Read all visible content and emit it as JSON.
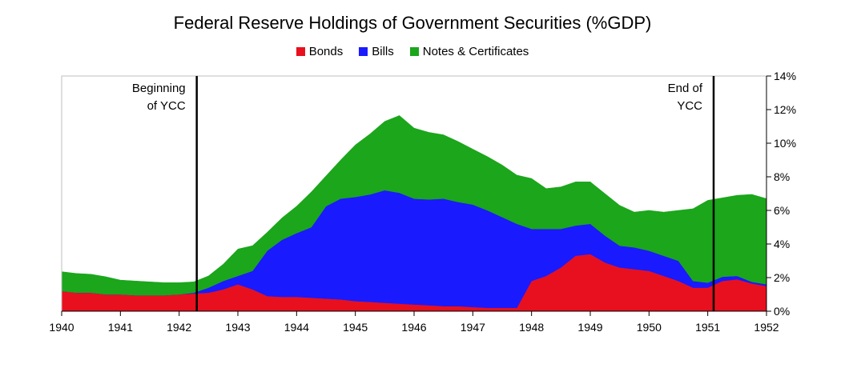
{
  "chart_data": {
    "type": "area",
    "stacked": true,
    "title": "Federal Reserve Holdings of Government Securities (%GDP)",
    "xlabel": "",
    "ylabel": "",
    "xlim": [
      1940,
      1952
    ],
    "ylim": [
      0,
      14
    ],
    "x_ticks": [
      1940,
      1941,
      1942,
      1943,
      1944,
      1945,
      1946,
      1947,
      1948,
      1949,
      1950,
      1951,
      1952
    ],
    "y_ticks": [
      0,
      2,
      4,
      6,
      8,
      10,
      12,
      14
    ],
    "y_tick_labels": [
      "0%",
      "2%",
      "4%",
      "6%",
      "8%",
      "10%",
      "12%",
      "14%"
    ],
    "y_axis_side": "right",
    "grid": false,
    "legend_position": "top-center",
    "x": [
      1940.0,
      1940.25,
      1940.5,
      1940.75,
      1941.0,
      1941.25,
      1941.5,
      1941.75,
      1942.0,
      1942.25,
      1942.5,
      1942.75,
      1943.0,
      1943.25,
      1943.5,
      1943.75,
      1944.0,
      1944.25,
      1944.5,
      1944.75,
      1945.0,
      1945.25,
      1945.5,
      1945.75,
      1946.0,
      1946.25,
      1946.5,
      1946.75,
      1947.0,
      1947.25,
      1947.5,
      1947.75,
      1948.0,
      1948.25,
      1948.5,
      1948.75,
      1949.0,
      1949.25,
      1949.5,
      1949.75,
      1950.0,
      1950.25,
      1950.5,
      1950.75,
      1951.0,
      1951.25,
      1951.5,
      1951.75,
      1952.0
    ],
    "series": [
      {
        "name": "Bonds",
        "color": "#e8101e",
        "values": [
          1.2,
          1.1,
          1.1,
          1.0,
          1.0,
          0.95,
          0.95,
          0.95,
          1.0,
          1.05,
          1.1,
          1.3,
          1.6,
          1.3,
          0.9,
          0.85,
          0.85,
          0.8,
          0.75,
          0.7,
          0.6,
          0.55,
          0.5,
          0.45,
          0.4,
          0.35,
          0.3,
          0.3,
          0.25,
          0.2,
          0.2,
          0.2,
          1.8,
          2.1,
          2.6,
          3.3,
          3.4,
          2.9,
          2.6,
          2.5,
          2.4,
          2.1,
          1.8,
          1.4,
          1.4,
          1.8,
          1.9,
          1.65,
          1.5
        ]
      },
      {
        "name": "Bills",
        "color": "#1a1aff",
        "values": [
          0.0,
          0.0,
          0.0,
          0.0,
          0.0,
          0.0,
          0.0,
          0.0,
          0.0,
          0.05,
          0.3,
          0.5,
          0.5,
          1.1,
          2.7,
          3.4,
          3.8,
          4.2,
          5.5,
          6.0,
          6.2,
          6.4,
          6.7,
          6.6,
          6.3,
          6.3,
          6.4,
          6.2,
          6.1,
          5.8,
          5.4,
          5.0,
          3.1,
          2.8,
          2.3,
          1.8,
          1.8,
          1.6,
          1.3,
          1.3,
          1.2,
          1.2,
          1.2,
          0.4,
          0.3,
          0.25,
          0.2,
          0.1,
          0.1
        ]
      },
      {
        "name": "Notes & Certificates",
        "color": "#1ba61b",
        "values": [
          1.15,
          1.15,
          1.1,
          1.05,
          0.85,
          0.85,
          0.8,
          0.75,
          0.7,
          0.65,
          0.7,
          1.0,
          1.6,
          1.5,
          1.1,
          1.3,
          1.6,
          2.1,
          1.8,
          2.3,
          3.1,
          3.6,
          4.1,
          4.6,
          4.2,
          4.0,
          3.8,
          3.6,
          3.3,
          3.2,
          3.1,
          2.9,
          3.0,
          2.4,
          2.5,
          2.6,
          2.5,
          2.5,
          2.4,
          2.1,
          2.4,
          2.6,
          3.0,
          4.3,
          4.9,
          4.7,
          4.8,
          5.2,
          5.1
        ]
      }
    ],
    "annotations": [
      {
        "x": 1942.3,
        "lines": [
          "Beginning",
          "of YCC"
        ],
        "label_side": "left"
      },
      {
        "x": 1951.1,
        "lines": [
          "End of",
          "YCC"
        ],
        "label_side": "left"
      }
    ]
  }
}
